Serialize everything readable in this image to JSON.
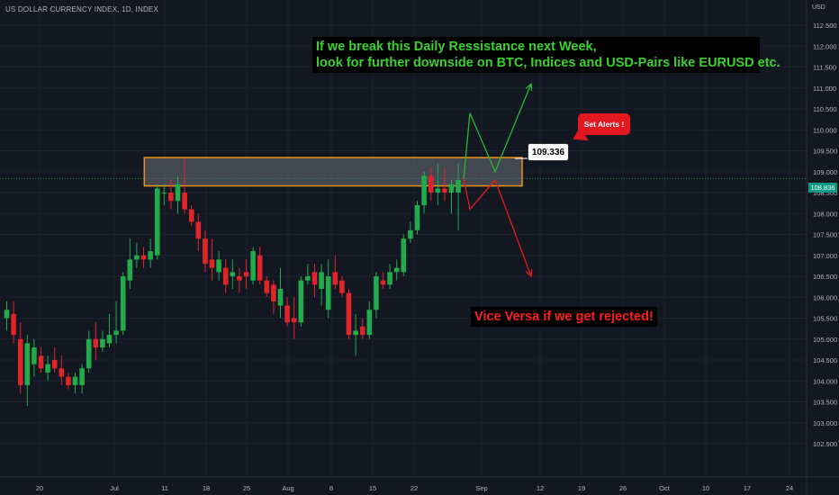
{
  "header": {
    "symbol": "US DOLLAR CURRENCY INDEX, 1D, INDEX",
    "unit": "USD"
  },
  "annotations": {
    "green_line1": "If we break this Daily Ressistance next Week,",
    "green_line2": "look for further downside on BTC, Indices and USD-Pairs like EURUSD etc.",
    "red_text": "Vice Versa if we get rejected!",
    "alert_label": "Set Alerts !",
    "level_label": "109.336"
  },
  "current_price": "108.836",
  "colors": {
    "background": "#131722",
    "up": "#22ab4b",
    "down": "#e0252a",
    "zone_fill": "#6c6f7a",
    "zone_border": "#f0921a",
    "green_arrow": "#26b83a",
    "red_arrow": "#e01d1d",
    "grid": "#1c2030"
  },
  "chart_data": {
    "type": "candlestick",
    "y_axis": {
      "ticks": [
        "112.500",
        "112.000",
        "111.500",
        "111.000",
        "110.500",
        "110.000",
        "109.500",
        "109.000",
        "108.500",
        "108.000",
        "107.500",
        "107.000",
        "106.500",
        "106.000",
        "105.500",
        "105.000",
        "104.500",
        "104.000",
        "103.500",
        "103.000",
        "102.500"
      ],
      "range": [
        102.3,
        113.2
      ]
    },
    "x_axis": {
      "ticks": [
        "20",
        "Jul",
        "11",
        "18",
        "25",
        "Aug",
        "8",
        "15",
        "22",
        "Sep",
        "12",
        "19",
        "26",
        "Oct",
        "10",
        "17",
        "24"
      ]
    },
    "candles": [
      {
        "o": 105.5,
        "h": 105.9,
        "l": 105.2,
        "c": 105.7
      },
      {
        "o": 105.6,
        "h": 105.9,
        "l": 104.9,
        "c": 105.1
      },
      {
        "o": 105.0,
        "h": 105.4,
        "l": 103.7,
        "c": 103.9
      },
      {
        "o": 103.9,
        "h": 105.1,
        "l": 103.4,
        "c": 104.9
      },
      {
        "o": 104.4,
        "h": 105.0,
        "l": 104.1,
        "c": 104.8
      },
      {
        "o": 104.6,
        "h": 104.8,
        "l": 104.2,
        "c": 104.3
      },
      {
        "o": 104.2,
        "h": 104.6,
        "l": 104.0,
        "c": 104.4
      },
      {
        "o": 104.5,
        "h": 104.8,
        "l": 104.2,
        "c": 104.3
      },
      {
        "o": 104.3,
        "h": 104.6,
        "l": 103.9,
        "c": 104.1
      },
      {
        "o": 104.1,
        "h": 104.2,
        "l": 103.8,
        "c": 103.9
      },
      {
        "o": 103.9,
        "h": 104.2,
        "l": 103.7,
        "c": 104.1
      },
      {
        "o": 103.9,
        "h": 104.4,
        "l": 103.7,
        "c": 104.3
      },
      {
        "o": 104.3,
        "h": 105.2,
        "l": 104.2,
        "c": 105.0
      },
      {
        "o": 105.0,
        "h": 105.4,
        "l": 104.5,
        "c": 104.8
      },
      {
        "o": 104.8,
        "h": 105.2,
        "l": 104.7,
        "c": 105.0
      },
      {
        "o": 104.9,
        "h": 105.6,
        "l": 104.8,
        "c": 105.1
      },
      {
        "o": 105.1,
        "h": 105.9,
        "l": 104.9,
        "c": 105.2
      },
      {
        "o": 105.2,
        "h": 106.6,
        "l": 105.1,
        "c": 106.5
      },
      {
        "o": 106.4,
        "h": 107.4,
        "l": 106.2,
        "c": 106.9
      },
      {
        "o": 106.9,
        "h": 107.3,
        "l": 106.7,
        "c": 107.0
      },
      {
        "o": 107.0,
        "h": 107.2,
        "l": 106.7,
        "c": 106.9
      },
      {
        "o": 106.9,
        "h": 107.4,
        "l": 106.7,
        "c": 107.1
      },
      {
        "o": 107.0,
        "h": 108.7,
        "l": 106.9,
        "c": 108.6
      },
      {
        "o": 108.5,
        "h": 108.7,
        "l": 108.2,
        "c": 108.5
      },
      {
        "o": 108.5,
        "h": 108.8,
        "l": 108.1,
        "c": 108.3
      },
      {
        "o": 108.3,
        "h": 108.9,
        "l": 108.0,
        "c": 108.7
      },
      {
        "o": 108.5,
        "h": 109.3,
        "l": 108.0,
        "c": 108.1
      },
      {
        "o": 108.1,
        "h": 108.2,
        "l": 107.7,
        "c": 107.8
      },
      {
        "o": 107.8,
        "h": 108.0,
        "l": 107.1,
        "c": 107.4
      },
      {
        "o": 107.4,
        "h": 107.6,
        "l": 106.6,
        "c": 106.8
      },
      {
        "o": 106.9,
        "h": 107.4,
        "l": 106.4,
        "c": 106.7
      },
      {
        "o": 106.6,
        "h": 107.1,
        "l": 106.4,
        "c": 106.9
      },
      {
        "o": 106.7,
        "h": 106.9,
        "l": 106.1,
        "c": 106.3
      },
      {
        "o": 106.5,
        "h": 106.9,
        "l": 106.2,
        "c": 106.6
      },
      {
        "o": 106.5,
        "h": 106.7,
        "l": 106.1,
        "c": 106.4
      },
      {
        "o": 106.6,
        "h": 106.9,
        "l": 106.2,
        "c": 106.5
      },
      {
        "o": 106.4,
        "h": 107.2,
        "l": 106.3,
        "c": 107.1
      },
      {
        "o": 107.0,
        "h": 107.2,
        "l": 106.3,
        "c": 106.4
      },
      {
        "o": 106.4,
        "h": 106.5,
        "l": 106.0,
        "c": 106.1
      },
      {
        "o": 106.3,
        "h": 106.4,
        "l": 105.6,
        "c": 105.9
      },
      {
        "o": 105.8,
        "h": 106.7,
        "l": 105.5,
        "c": 106.2
      },
      {
        "o": 105.8,
        "h": 106.0,
        "l": 105.3,
        "c": 105.4
      },
      {
        "o": 105.5,
        "h": 106.0,
        "l": 105.0,
        "c": 105.4
      },
      {
        "o": 105.4,
        "h": 106.5,
        "l": 105.3,
        "c": 106.4
      },
      {
        "o": 106.4,
        "h": 106.8,
        "l": 106.3,
        "c": 106.5
      },
      {
        "o": 106.6,
        "h": 106.8,
        "l": 106.0,
        "c": 106.3
      },
      {
        "o": 106.2,
        "h": 106.8,
        "l": 105.8,
        "c": 106.6
      },
      {
        "o": 105.7,
        "h": 106.9,
        "l": 105.5,
        "c": 106.5
      },
      {
        "o": 106.6,
        "h": 107.0,
        "l": 106.2,
        "c": 106.3
      },
      {
        "o": 106.4,
        "h": 106.5,
        "l": 106.0,
        "c": 106.1
      },
      {
        "o": 106.1,
        "h": 106.2,
        "l": 105.0,
        "c": 105.1
      },
      {
        "o": 105.1,
        "h": 105.6,
        "l": 104.6,
        "c": 105.2
      },
      {
        "o": 105.3,
        "h": 105.5,
        "l": 105.0,
        "c": 105.1
      },
      {
        "o": 105.1,
        "h": 105.9,
        "l": 105.0,
        "c": 105.7
      },
      {
        "o": 105.7,
        "h": 106.6,
        "l": 105.5,
        "c": 106.5
      },
      {
        "o": 106.4,
        "h": 106.6,
        "l": 106.2,
        "c": 106.3
      },
      {
        "o": 106.3,
        "h": 106.8,
        "l": 106.2,
        "c": 106.6
      },
      {
        "o": 106.6,
        "h": 106.9,
        "l": 106.4,
        "c": 106.7
      },
      {
        "o": 106.6,
        "h": 107.5,
        "l": 106.5,
        "c": 107.4
      },
      {
        "o": 107.4,
        "h": 107.8,
        "l": 107.3,
        "c": 107.6
      },
      {
        "o": 107.6,
        "h": 108.3,
        "l": 107.5,
        "c": 108.2
      },
      {
        "o": 108.2,
        "h": 109.0,
        "l": 108.0,
        "c": 108.9
      },
      {
        "o": 108.9,
        "h": 109.1,
        "l": 108.3,
        "c": 108.5
      },
      {
        "o": 108.5,
        "h": 109.2,
        "l": 108.2,
        "c": 108.6
      },
      {
        "o": 108.6,
        "h": 109.1,
        "l": 108.3,
        "c": 108.5
      },
      {
        "o": 108.5,
        "h": 108.8,
        "l": 108.0,
        "c": 108.7
      },
      {
        "o": 108.5,
        "h": 109.2,
        "l": 107.6,
        "c": 108.8
      }
    ],
    "resistance_zone": {
      "low": 108.66,
      "high": 109.336,
      "start_index": 23,
      "end_date": "Sep 8"
    },
    "current_price": 108.836,
    "bull_path": [
      [
        108.836,
        "now"
      ],
      [
        110.4,
        "Aug 31"
      ],
      [
        109.0,
        "Sep 3"
      ],
      [
        111.1,
        "Sep 6"
      ]
    ],
    "bear_path": [
      [
        108.836,
        "now"
      ],
      [
        108.1,
        "Aug 31"
      ],
      [
        108.8,
        "Sep 3"
      ],
      [
        106.5,
        "Sep 6"
      ]
    ]
  }
}
